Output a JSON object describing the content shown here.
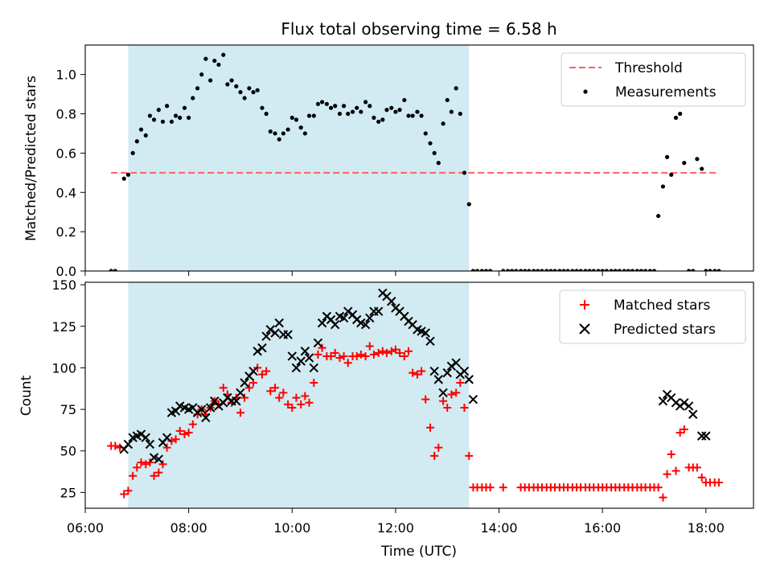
{
  "title": "Flux total observing time = 6.58 h",
  "colors": {
    "shade": "#add8e6",
    "threshold": "#ff6060",
    "measurements": "#000000",
    "matched": "#ff0000",
    "predicted": "#000000"
  },
  "chart_data": [
    {
      "type": "scatter",
      "panel": "top",
      "title": "Flux total observing time = 6.58 h",
      "ylabel": "Matched/Predicted stars",
      "xlabel": "",
      "xlim": [
        6.0,
        18.92
      ],
      "ylim": [
        0,
        1.15
      ],
      "yticks": [
        0.0,
        0.2,
        0.4,
        0.6,
        0.8,
        1.0
      ],
      "shaded_x": [
        6.83,
        13.42
      ],
      "legend": {
        "position": "top-right",
        "entries": [
          "Threshold",
          "Measurements"
        ]
      },
      "threshold": {
        "name": "Threshold",
        "value": 0.5,
        "x_range": [
          6.5,
          18.25
        ],
        "style": "dashed"
      },
      "series": [
        {
          "name": "Measurements",
          "marker": "dot",
          "x": [
            6.5,
            6.58,
            6.75,
            6.83,
            6.92,
            7.0,
            7.08,
            7.17,
            7.25,
            7.33,
            7.42,
            7.5,
            7.58,
            7.67,
            7.75,
            7.83,
            7.92,
            8.0,
            8.08,
            8.17,
            8.25,
            8.33,
            8.42,
            8.5,
            8.58,
            8.67,
            8.75,
            8.83,
            8.92,
            9.0,
            9.08,
            9.17,
            9.25,
            9.33,
            9.42,
            9.5,
            9.58,
            9.67,
            9.75,
            9.83,
            9.92,
            10.0,
            10.08,
            10.17,
            10.25,
            10.33,
            10.42,
            10.5,
            10.58,
            10.67,
            10.75,
            10.83,
            10.92,
            11.0,
            11.08,
            11.17,
            11.25,
            11.33,
            11.42,
            11.5,
            11.58,
            11.67,
            11.75,
            11.83,
            11.92,
            12.0,
            12.08,
            12.17,
            12.25,
            12.33,
            12.42,
            12.5,
            12.58,
            12.67,
            12.75,
            12.83,
            12.92,
            13.0,
            13.08,
            13.17,
            13.25,
            13.33,
            13.42,
            13.5,
            13.58,
            13.67,
            13.75,
            13.83,
            14.08,
            14.17,
            14.25,
            14.33,
            14.42,
            14.5,
            14.58,
            14.67,
            14.75,
            14.83,
            14.92,
            15.0,
            15.08,
            15.17,
            15.25,
            15.33,
            15.42,
            15.5,
            15.58,
            15.67,
            15.75,
            15.83,
            15.92,
            16.0,
            16.08,
            16.17,
            16.25,
            16.33,
            16.42,
            16.5,
            16.58,
            16.67,
            16.75,
            16.83,
            16.92,
            17.0,
            17.08,
            17.17,
            17.25,
            17.33,
            17.42,
            17.5,
            17.58,
            17.67,
            17.75,
            17.83,
            17.92,
            18.0,
            18.08,
            18.17,
            18.25
          ],
          "y": [
            0.0,
            0.0,
            0.47,
            0.49,
            0.6,
            0.66,
            0.72,
            0.69,
            0.79,
            0.77,
            0.82,
            0.76,
            0.84,
            0.76,
            0.79,
            0.78,
            0.83,
            0.78,
            0.88,
            0.93,
            1.0,
            1.08,
            0.97,
            1.07,
            1.05,
            1.1,
            0.95,
            0.97,
            0.94,
            0.91,
            0.88,
            0.93,
            0.91,
            0.92,
            0.83,
            0.8,
            0.71,
            0.7,
            0.67,
            0.7,
            0.72,
            0.78,
            0.77,
            0.73,
            0.7,
            0.79,
            0.79,
            0.85,
            0.86,
            0.85,
            0.83,
            0.84,
            0.8,
            0.84,
            0.8,
            0.81,
            0.83,
            0.81,
            0.86,
            0.84,
            0.78,
            0.76,
            0.77,
            0.82,
            0.83,
            0.81,
            0.82,
            0.87,
            0.79,
            0.79,
            0.81,
            0.79,
            0.7,
            0.65,
            0.6,
            0.55,
            0.75,
            0.87,
            0.81,
            0.93,
            0.8,
            0.5,
            0.34,
            0.0,
            0.0,
            0.0,
            0.0,
            0.0,
            0.0,
            0.0,
            0.0,
            0.0,
            0.0,
            0.0,
            0.0,
            0.0,
            0.0,
            0.0,
            0.0,
            0.0,
            0.0,
            0.0,
            0.0,
            0.0,
            0.0,
            0.0,
            0.0,
            0.0,
            0.0,
            0.0,
            0.0,
            0.0,
            0.0,
            0.0,
            0.0,
            0.0,
            0.0,
            0.0,
            0.0,
            0.0,
            0.0,
            0.0,
            0.0,
            0.0,
            0.28,
            0.43,
            0.58,
            0.49,
            0.78,
            0.8,
            0.55,
            0.0,
            0.0,
            0.57,
            0.52,
            0.0,
            0.0,
            0.0,
            0.0
          ]
        }
      ]
    },
    {
      "type": "scatter",
      "panel": "bottom",
      "ylabel": "Count",
      "xlabel": "Time (UTC)",
      "xlim": [
        6.0,
        18.92
      ],
      "ylim": [
        15.5,
        151.5
      ],
      "yticks": [
        25,
        50,
        75,
        100,
        125,
        150
      ],
      "xticks": [
        6,
        8,
        10,
        12,
        14,
        16,
        18
      ],
      "xtick_labels": [
        "06:00",
        "08:00",
        "10:00",
        "12:00",
        "14:00",
        "16:00",
        "18:00"
      ],
      "shaded_x": [
        6.83,
        13.42
      ],
      "legend": {
        "position": "top-right",
        "entries": [
          "Matched stars",
          "Predicted stars"
        ]
      },
      "series": [
        {
          "name": "Matched stars",
          "marker": "plus",
          "x": [
            6.5,
            6.58,
            6.67,
            6.75,
            6.83,
            6.92,
            7.0,
            7.08,
            7.17,
            7.25,
            7.33,
            7.42,
            7.5,
            7.58,
            7.67,
            7.75,
            7.83,
            7.92,
            8.0,
            8.08,
            8.17,
            8.25,
            8.33,
            8.42,
            8.5,
            8.58,
            8.67,
            8.75,
            8.83,
            8.92,
            9.0,
            9.08,
            9.17,
            9.25,
            9.33,
            9.42,
            9.5,
            9.58,
            9.67,
            9.75,
            9.83,
            9.92,
            10.0,
            10.08,
            10.17,
            10.25,
            10.33,
            10.42,
            10.5,
            10.58,
            10.67,
            10.75,
            10.83,
            10.92,
            11.0,
            11.08,
            11.17,
            11.25,
            11.33,
            11.42,
            11.5,
            11.58,
            11.67,
            11.75,
            11.83,
            11.92,
            12.0,
            12.08,
            12.17,
            12.25,
            12.33,
            12.42,
            12.5,
            12.58,
            12.67,
            12.75,
            12.83,
            12.92,
            13.0,
            13.08,
            13.17,
            13.25,
            13.33,
            13.42,
            13.5,
            13.58,
            13.67,
            13.75,
            13.83,
            14.08,
            14.42,
            14.5,
            14.58,
            14.67,
            14.75,
            14.83,
            14.92,
            15.0,
            15.08,
            15.17,
            15.25,
            15.33,
            15.42,
            15.5,
            15.58,
            15.67,
            15.75,
            15.83,
            15.92,
            16.0,
            16.08,
            16.17,
            16.25,
            16.33,
            16.42,
            16.5,
            16.58,
            16.67,
            16.75,
            16.83,
            16.92,
            17.0,
            17.08,
            17.17,
            17.25,
            17.33,
            17.42,
            17.5,
            17.58,
            17.67,
            17.75,
            17.83,
            17.92,
            18.0,
            18.08,
            18.17,
            18.25
          ],
          "y": [
            53,
            53,
            52,
            24,
            26,
            35,
            40,
            43,
            42,
            43,
            35,
            37,
            42,
            52,
            56,
            57,
            62,
            60,
            61,
            66,
            72,
            75,
            72,
            76,
            80,
            78,
            88,
            84,
            79,
            82,
            73,
            82,
            88,
            91,
            100,
            96,
            98,
            86,
            88,
            82,
            85,
            78,
            76,
            82,
            78,
            83,
            79,
            91,
            108,
            112,
            107,
            107,
            109,
            106,
            107,
            103,
            107,
            107,
            108,
            107,
            113,
            108,
            109,
            110,
            109,
            110,
            111,
            109,
            107,
            110,
            97,
            96,
            98,
            81,
            64,
            47,
            52,
            80,
            76,
            84,
            85,
            91,
            76,
            47,
            28,
            28,
            28,
            28,
            28,
            28,
            28,
            28,
            28,
            28,
            28,
            28,
            28,
            28,
            28,
            28,
            28,
            28,
            28,
            28,
            28,
            28,
            28,
            28,
            28,
            28,
            28,
            28,
            28,
            28,
            28,
            28,
            28,
            28,
            28,
            28,
            28,
            28,
            28,
            22,
            36,
            48,
            38,
            61,
            63,
            40,
            40,
            40,
            34,
            31,
            31,
            31,
            31
          ]
        },
        {
          "name": "Predicted stars",
          "marker": "x",
          "x": [
            6.75,
            6.83,
            6.92,
            7.0,
            7.08,
            7.17,
            7.25,
            7.33,
            7.42,
            7.5,
            7.58,
            7.67,
            7.75,
            7.83,
            7.92,
            8.0,
            8.08,
            8.17,
            8.25,
            8.33,
            8.42,
            8.5,
            8.58,
            8.67,
            8.75,
            8.83,
            8.92,
            9.0,
            9.08,
            9.17,
            9.25,
            9.33,
            9.42,
            9.5,
            9.58,
            9.67,
            9.75,
            9.83,
            9.92,
            10.0,
            10.08,
            10.17,
            10.25,
            10.33,
            10.42,
            10.5,
            10.58,
            10.67,
            10.75,
            10.83,
            10.92,
            11.0,
            11.08,
            11.17,
            11.25,
            11.33,
            11.42,
            11.5,
            11.58,
            11.67,
            11.75,
            11.83,
            11.92,
            12.0,
            12.08,
            12.17,
            12.25,
            12.33,
            12.42,
            12.5,
            12.58,
            12.67,
            12.75,
            12.83,
            12.92,
            13.0,
            13.08,
            13.17,
            13.25,
            13.33,
            13.42,
            13.5,
            17.17,
            17.25,
            17.33,
            17.42,
            17.5,
            17.58,
            17.67,
            17.75,
            17.92,
            18.0
          ],
          "y": [
            51,
            54,
            58,
            59,
            60,
            58,
            54,
            46,
            45,
            55,
            58,
            73,
            74,
            77,
            76,
            75,
            76,
            73,
            75,
            70,
            76,
            80,
            77,
            79,
            82,
            80,
            80,
            85,
            91,
            95,
            98,
            110,
            112,
            119,
            123,
            121,
            127,
            120,
            120,
            107,
            100,
            104,
            110,
            106,
            100,
            115,
            127,
            131,
            129,
            126,
            131,
            130,
            134,
            132,
            129,
            127,
            126,
            130,
            134,
            134,
            145,
            143,
            140,
            136,
            134,
            131,
            128,
            126,
            123,
            122,
            121,
            116,
            98,
            93,
            85,
            97,
            101,
            103,
            96,
            98,
            93,
            81,
            80,
            84,
            82,
            79,
            77,
            79,
            77,
            72,
            59,
            59
          ]
        }
      ]
    }
  ]
}
